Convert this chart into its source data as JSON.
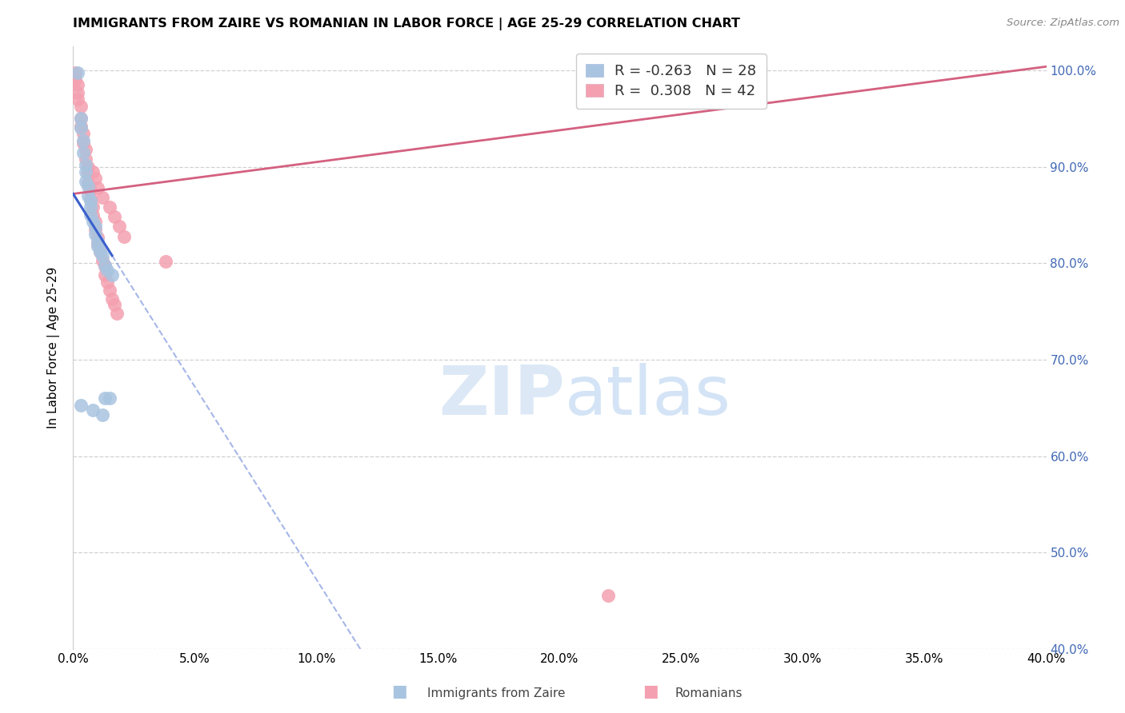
{
  "title": "IMMIGRANTS FROM ZAIRE VS ROMANIAN IN LABOR FORCE | AGE 25-29 CORRELATION CHART",
  "source": "Source: ZipAtlas.com",
  "ylabel": "In Labor Force | Age 25-29",
  "xlim": [
    0.0,
    0.4
  ],
  "ylim": [
    0.4,
    1.025
  ],
  "yticks": [
    0.4,
    0.5,
    0.6,
    0.7,
    0.8,
    0.9,
    1.0
  ],
  "xticks": [
    0.0,
    0.05,
    0.1,
    0.15,
    0.2,
    0.25,
    0.3,
    0.35,
    0.4
  ],
  "zaire_x": [
    0.002,
    0.003,
    0.003,
    0.004,
    0.004,
    0.005,
    0.005,
    0.005,
    0.006,
    0.006,
    0.007,
    0.007,
    0.007,
    0.008,
    0.009,
    0.009,
    0.01,
    0.01,
    0.011,
    0.012,
    0.013,
    0.013,
    0.014,
    0.015,
    0.016,
    0.003,
    0.008,
    0.012
  ],
  "zaire_y": [
    0.998,
    0.95,
    0.94,
    0.927,
    0.915,
    0.902,
    0.895,
    0.885,
    0.88,
    0.87,
    0.865,
    0.858,
    0.85,
    0.843,
    0.838,
    0.83,
    0.823,
    0.818,
    0.812,
    0.808,
    0.66,
    0.798,
    0.793,
    0.66,
    0.788,
    0.653,
    0.648,
    0.643
  ],
  "romanian_x": [
    0.001,
    0.001,
    0.002,
    0.002,
    0.002,
    0.003,
    0.003,
    0.003,
    0.004,
    0.004,
    0.005,
    0.005,
    0.006,
    0.006,
    0.006,
    0.007,
    0.007,
    0.008,
    0.008,
    0.009,
    0.009,
    0.01,
    0.01,
    0.011,
    0.012,
    0.013,
    0.013,
    0.014,
    0.015,
    0.016,
    0.017,
    0.018,
    0.008,
    0.009,
    0.01,
    0.012,
    0.015,
    0.017,
    0.019,
    0.021,
    0.22,
    0.038
  ],
  "romanian_y": [
    0.998,
    0.99,
    0.985,
    0.977,
    0.97,
    0.963,
    0.95,
    0.942,
    0.935,
    0.925,
    0.918,
    0.908,
    0.9,
    0.893,
    0.883,
    0.876,
    0.867,
    0.858,
    0.85,
    0.843,
    0.835,
    0.827,
    0.82,
    0.812,
    0.803,
    0.797,
    0.788,
    0.78,
    0.772,
    0.763,
    0.757,
    0.748,
    0.895,
    0.888,
    0.878,
    0.868,
    0.858,
    0.848,
    0.838,
    0.828,
    0.455,
    0.802
  ],
  "zaire_color": "#a8c4e0",
  "romanian_color": "#f4a0b0",
  "zaire_line_color": "#3a5fcd",
  "romanian_line_color": "#d46080",
  "zaire_R": -0.263,
  "zaire_N": 28,
  "romanian_R": 0.308,
  "romanian_N": 42
}
